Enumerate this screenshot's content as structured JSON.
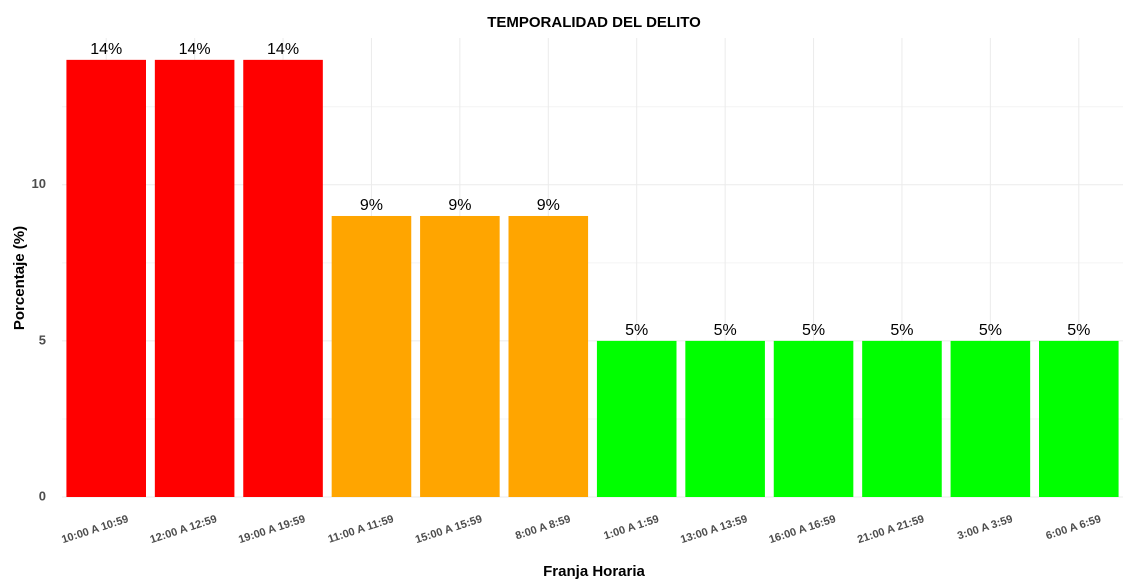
{
  "chart_data": {
    "type": "bar",
    "title": "TEMPORALIDAD DEL DELITO",
    "x_label": "Franja Horaria",
    "y_label": "Porcentaje (%)",
    "categories": [
      "10:00 A 10:59",
      "12:00 A 12:59",
      "19:00 A 19:59",
      "11:00 A 11:59",
      "15:00 A 15:59",
      "8:00 A 8:59",
      "1:00 A 1:59",
      "13:00 A 13:59",
      "16:00 A 16:59",
      "21:00 A 21:59",
      "3:00 A 3:59",
      "6:00 A 6:59"
    ],
    "values": [
      14,
      14,
      14,
      9,
      9,
      9,
      5,
      5,
      5,
      5,
      5,
      5
    ],
    "value_labels": [
      "14%",
      "14%",
      "14%",
      "9%",
      "9%",
      "9%",
      "5%",
      "5%",
      "5%",
      "5%",
      "5%",
      "5%"
    ],
    "colors": [
      "#ff0000",
      "#ff0000",
      "#ff0000",
      "#ffa500",
      "#ffa500",
      "#ffa500",
      "#00ff00",
      "#00ff00",
      "#00ff00",
      "#00ff00",
      "#00ff00",
      "#00ff00"
    ],
    "ylim": [
      0,
      14.7
    ],
    "yticks": [
      0,
      5,
      10
    ],
    "minor_yticks": [
      2.5,
      7.5,
      12.5
    ],
    "grid": true
  }
}
